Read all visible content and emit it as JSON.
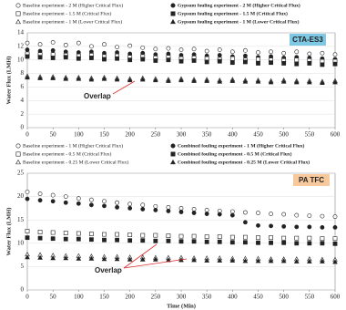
{
  "chart_data": [
    {
      "type": "scatter",
      "y_label": "Water Flux (LMH)",
      "ylim": [
        0,
        14
      ],
      "yticks": [
        0,
        2,
        4,
        6,
        8,
        10,
        12,
        14
      ],
      "xlim": [
        0,
        600
      ],
      "xticks": [
        0,
        50,
        100,
        150,
        200,
        250,
        300,
        350,
        400,
        450,
        500,
        550,
        600
      ],
      "grid": true,
      "annotations": [
        {
          "text": "CTA-ES3",
          "color": "#7ec8e3"
        },
        {
          "text": "Overlap",
          "color": "#e03030"
        }
      ],
      "x": [
        0,
        25,
        50,
        75,
        100,
        125,
        150,
        175,
        200,
        225,
        250,
        275,
        300,
        325,
        350,
        375,
        400,
        425,
        450,
        475,
        500,
        525,
        550,
        575,
        600
      ],
      "series": [
        {
          "name": "Baseline experiment - 2 M (Higher Critical Flux)",
          "color": "#222",
          "marker": "circle",
          "filled": false,
          "values": [
            12.5,
            12.3,
            12.6,
            12.2,
            12.5,
            12.0,
            12.3,
            11.9,
            12.1,
            11.8,
            11.6,
            11.7,
            11.5,
            11.6,
            11.3,
            11.5,
            11.2,
            11.4,
            11.1,
            11.2,
            11.0,
            11.2,
            10.9,
            11.0,
            10.8
          ]
        },
        {
          "name": "Gypsum fouling experiment - 2 M (Higher Critical Flux)",
          "color": "#222",
          "marker": "circle",
          "filled": true,
          "values": [
            11.5,
            11.3,
            11.4,
            11.2,
            11.1,
            11.2,
            11.0,
            11.1,
            10.9,
            11.0,
            10.8,
            10.9,
            10.7,
            10.8,
            10.6,
            10.7,
            10.5,
            10.6,
            10.4,
            10.5,
            10.3,
            10.4,
            10.3,
            10.2,
            10.1
          ]
        },
        {
          "name": "Baseline experiment - 1.5 M (Critical Flux)",
          "color": "#222",
          "marker": "square",
          "filled": false,
          "values": [
            10.9,
            10.8,
            10.8,
            10.7,
            10.6,
            10.7,
            10.5,
            10.6,
            10.4,
            10.5,
            10.3,
            10.4,
            10.2,
            10.3,
            10.2,
            10.1,
            10.2,
            10.0,
            10.1,
            10.0,
            9.9,
            10.0,
            9.9,
            9.8,
            9.8
          ]
        },
        {
          "name": "Gypsum fouling experiment - 1.5 M (Critical Flux)",
          "color": "#222",
          "marker": "square",
          "filled": true,
          "values": [
            10.5,
            10.4,
            10.3,
            10.4,
            10.2,
            10.3,
            10.1,
            10.2,
            10.0,
            10.1,
            9.9,
            10.0,
            9.8,
            9.9,
            9.7,
            9.8,
            9.6,
            9.7,
            9.5,
            9.6,
            9.5,
            9.4,
            9.5,
            9.3,
            9.4
          ]
        },
        {
          "name": "Baseline experiment - 1 M (Lower Critical Flux)",
          "color": "#222",
          "marker": "triangle",
          "filled": false,
          "values": [
            7.6,
            7.5,
            7.5,
            7.4,
            7.4,
            7.3,
            7.4,
            7.3,
            7.2,
            7.3,
            7.2,
            7.1,
            7.2,
            7.1,
            7.1,
            7.0,
            7.1,
            7.0,
            7.0,
            6.9,
            7.0,
            6.9,
            6.9,
            6.8,
            6.9
          ]
        },
        {
          "name": "Gypsum fouling experiment - 1 M (Lower Critical Flux)",
          "color": "#222",
          "marker": "triangle",
          "filled": true,
          "values": [
            7.4,
            7.3,
            7.3,
            7.2,
            7.2,
            7.1,
            7.2,
            7.1,
            7.0,
            7.1,
            7.0,
            6.9,
            7.0,
            6.9,
            6.9,
            6.8,
            6.9,
            6.8,
            6.8,
            6.7,
            6.8,
            6.7,
            6.7,
            6.6,
            6.7
          ]
        }
      ]
    },
    {
      "type": "scatter",
      "y_label": "Water Flux (LMH)",
      "x_label": "Time (Min)",
      "ylim": [
        0,
        25
      ],
      "yticks": [
        0,
        5,
        10,
        15,
        20,
        25
      ],
      "xlim": [
        0,
        600
      ],
      "xticks": [
        0,
        50,
        100,
        150,
        200,
        250,
        300,
        350,
        400,
        450,
        500,
        550,
        600
      ],
      "grid": true,
      "annotations": [
        {
          "text": "PA TFC",
          "color": "#f8c99c"
        },
        {
          "text": "Overlap",
          "color": "#e03030"
        }
      ],
      "x": [
        0,
        25,
        50,
        75,
        100,
        125,
        150,
        175,
        200,
        225,
        250,
        275,
        300,
        325,
        350,
        375,
        400,
        425,
        450,
        475,
        500,
        525,
        550,
        575,
        600
      ],
      "series": [
        {
          "name": "Baseline experiment - 1 M (Higher Critical Flux)",
          "color": "#222",
          "marker": "circle",
          "filled": false,
          "values": [
            21.0,
            20.6,
            20.3,
            20.0,
            19.6,
            19.3,
            19.0,
            18.7,
            18.4,
            18.2,
            17.9,
            17.7,
            17.5,
            17.3,
            17.1,
            16.9,
            16.8,
            16.6,
            16.5,
            16.3,
            16.2,
            16.0,
            15.9,
            15.8,
            15.7
          ]
        },
        {
          "name": "Combined fouling experiment - 1 M (Higher Critical Flux)",
          "color": "#222",
          "marker": "circle",
          "filled": true,
          "values": [
            19.5,
            19.2,
            19.0,
            18.7,
            18.5,
            18.2,
            18.0,
            17.7,
            17.5,
            17.3,
            17.1,
            16.9,
            16.7,
            16.5,
            16.3,
            16.2,
            16.0,
            14.5,
            13.8,
            13.7,
            13.6,
            13.5,
            13.5,
            13.4,
            13.4
          ]
        },
        {
          "name": "Baseline experiment - 0.5 M (Critical Flux)",
          "color": "#222",
          "marker": "square",
          "filled": false,
          "values": [
            12.6,
            12.4,
            12.3,
            12.2,
            12.1,
            12.0,
            11.9,
            11.9,
            11.8,
            11.7,
            11.7,
            11.6,
            11.5,
            11.5,
            11.4,
            11.4,
            11.3,
            11.3,
            11.2,
            11.2,
            11.1,
            11.1,
            11.1,
            11.0,
            11.0
          ]
        },
        {
          "name": "Combined fouling experiment - 0.5 M (Critical Flux)",
          "color": "#222",
          "marker": "square",
          "filled": true,
          "values": [
            11.2,
            11.1,
            11.0,
            10.9,
            10.9,
            10.8,
            10.7,
            10.7,
            10.6,
            10.6,
            10.5,
            10.5,
            10.4,
            10.4,
            10.3,
            10.3,
            10.2,
            10.2,
            10.1,
            10.1,
            10.1,
            10.0,
            10.0,
            10.0,
            9.9
          ]
        },
        {
          "name": "Baseline experiment - 0.25 M (Lower Critical Flux)",
          "color": "#222",
          "marker": "triangle",
          "filled": false,
          "values": [
            7.6,
            7.5,
            7.4,
            7.3,
            7.3,
            7.2,
            7.1,
            7.1,
            7.0,
            7.0,
            6.9,
            6.9,
            6.9,
            6.8,
            6.8,
            6.8,
            6.7,
            6.7,
            6.7,
            6.6,
            6.6,
            6.6,
            6.6,
            6.5,
            6.5
          ]
        },
        {
          "name": "Combined fouling experiment - 0.25 M (Lower Critical Flux)",
          "color": "#222",
          "marker": "triangle",
          "filled": true,
          "values": [
            7.0,
            6.9,
            6.8,
            6.8,
            6.7,
            6.7,
            6.6,
            6.6,
            6.5,
            6.5,
            6.5,
            6.4,
            6.4,
            6.4,
            6.3,
            6.3,
            6.3,
            6.2,
            6.2,
            6.2,
            6.2,
            6.1,
            6.1,
            6.1,
            6.0
          ]
        }
      ]
    }
  ]
}
